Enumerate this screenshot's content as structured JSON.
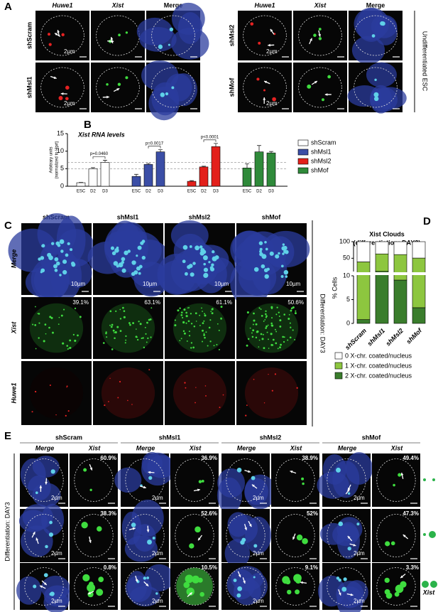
{
  "panel_labels": [
    "A",
    "B",
    "C",
    "D",
    "E"
  ],
  "panel_a": {
    "headers": [
      "Huwe1",
      "Xist",
      "Merge"
    ],
    "conditions": [
      "shScram",
      "shMsl1",
      "shMsl2",
      "shMof"
    ],
    "scale_bar": "2µm",
    "side_label": "Undifferentiated ESC"
  },
  "panel_c": {
    "conditions": [
      "shScram",
      "shMsl1",
      "shMsl2",
      "shMof"
    ],
    "rows": [
      "Merge",
      "Xist",
      "Huwe1"
    ],
    "percentages": [
      "39.1%",
      "63.1%",
      "61.1%",
      "50.6%"
    ],
    "scale_bar": "10µm",
    "side_label": "Differentiation: DAY3"
  },
  "panel_e": {
    "conditions": [
      "shScram",
      "shMsl1",
      "shMsl2",
      "shMof"
    ],
    "subheaders": [
      "Merge",
      "Xist"
    ],
    "percentages": [
      [
        "60.9%",
        "36.9%",
        "38.9%",
        "49.4%"
      ],
      [
        "38.3%",
        "52.6%",
        "52%",
        "47.3%"
      ],
      [
        "0.8%",
        "10.5%",
        "9.1%",
        "3.3%"
      ]
    ],
    "scale_bar": "2µm",
    "side_label": "Differentiation: DAY3",
    "legend_label": "Xist"
  },
  "chart_data": [
    {
      "type": "bar",
      "title": "Xist RNA levels",
      "y_label": [
        "Arbitrary units",
        "(normalized to Hprt)"
      ],
      "categories": [
        "ESC",
        "D2",
        "D3"
      ],
      "ylim": [
        0,
        15
      ],
      "yticks": [
        0,
        5,
        10,
        15
      ],
      "series": [
        {
          "name": "shScram",
          "color": "#ffffff",
          "values": [
            1,
            5,
            6.8
          ],
          "errors": [
            0.1,
            0.3,
            0.6
          ]
        },
        {
          "name": "shMsl1",
          "color": "#3b4ea6",
          "values": [
            2.8,
            6.2,
            9.8
          ],
          "errors": [
            0.6,
            0.3,
            0.6
          ]
        },
        {
          "name": "shMsl2",
          "color": "#e3201b",
          "values": [
            1.4,
            5.5,
            11.3
          ],
          "errors": [
            0.2,
            0.2,
            0.9
          ]
        },
        {
          "name": "shMof",
          "color": "#2f8a3a",
          "values": [
            5.2,
            9.8,
            9.5
          ],
          "errors": [
            1.2,
            1.8,
            0.4
          ]
        }
      ],
      "annotations": [
        "p=0.0460",
        "p=0.0017",
        "p<0.0001"
      ]
    },
    {
      "type": "stacked_bar",
      "title": "Xist Clouds",
      "subtitle": "(differentiation: DAY3)",
      "y_label": "% Cells",
      "categories": [
        "shScram",
        "shMsl1",
        "shMsl2",
        "shMof"
      ],
      "ylim": [
        0,
        100
      ],
      "yticks": [
        0,
        5,
        10,
        50,
        100
      ],
      "break_at": 10,
      "series": [
        {
          "name": "0 X-chr. coated/nucleus",
          "color": "#ffffff",
          "values": [
            60.9,
            36.9,
            38.9,
            49.4
          ]
        },
        {
          "name": "1 X-chr. coated/nucleus",
          "color": "#8dc63f",
          "values": [
            38.3,
            52.6,
            52,
            47.3
          ]
        },
        {
          "name": "2 X-chr. coated/nucleus",
          "color": "#3a7d2c",
          "values": [
            0.8,
            10.5,
            9.1,
            3.3
          ]
        }
      ]
    }
  ]
}
